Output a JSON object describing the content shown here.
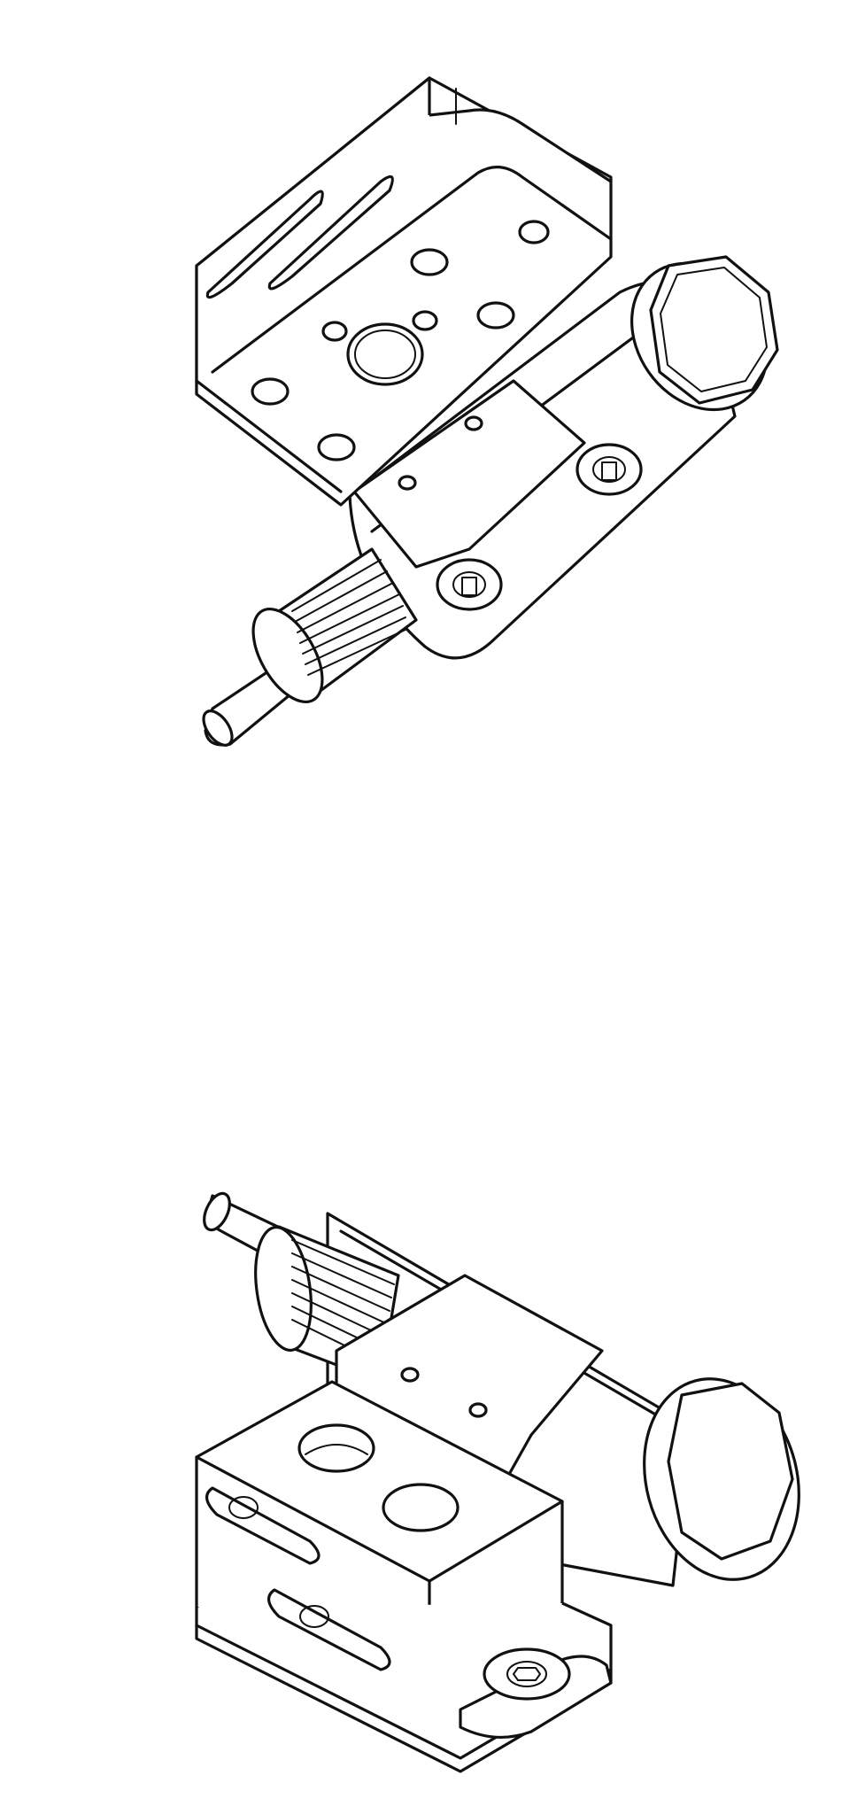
{
  "drawing": {
    "views": [
      {
        "id": "top-view",
        "subject": "pulley-motor-bracket-assembly"
      },
      {
        "id": "bottom-view",
        "subject": "pulley-motor-bracket-assembly"
      }
    ],
    "line_color": "#111111",
    "background_color": "#ffffff"
  }
}
